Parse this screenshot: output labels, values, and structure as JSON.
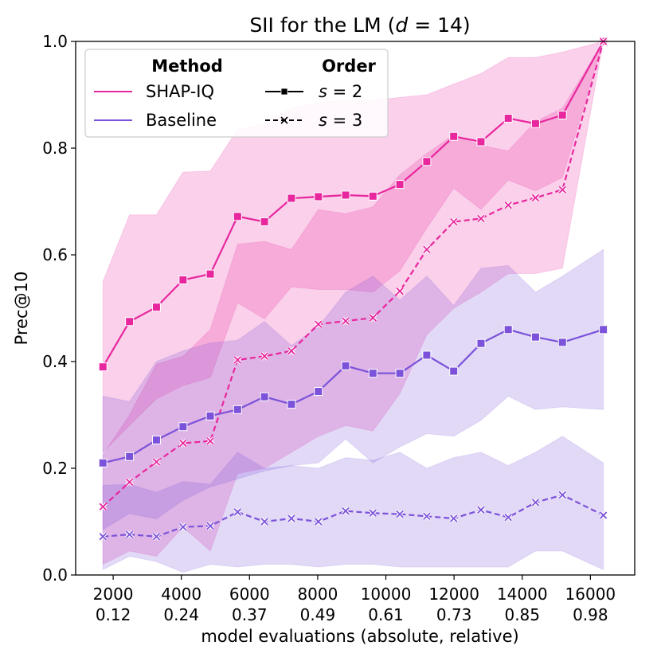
{
  "chart_data": {
    "type": "line",
    "title": "SII for the LM (d = 14)",
    "title_parts": {
      "prefix": "SII for the LM (",
      "var": "d",
      "eq": " = ",
      "num": "14",
      "suffix": ")"
    },
    "xlabel": "model evaluations (absolute, relative)",
    "ylabel": "Prec@10",
    "xlim": [
      900,
      17300
    ],
    "ylim": [
      0.0,
      1.0
    ],
    "x_ticks": [
      {
        "value": 2000,
        "label": "2000",
        "sub": "0.12"
      },
      {
        "value": 4000,
        "label": "4000",
        "sub": "0.24"
      },
      {
        "value": 6000,
        "label": "6000",
        "sub": "0.37"
      },
      {
        "value": 8000,
        "label": "8000",
        "sub": "0.49"
      },
      {
        "value": 10000,
        "label": "10000",
        "sub": "0.61"
      },
      {
        "value": 12000,
        "label": "12000",
        "sub": "0.73"
      },
      {
        "value": 14000,
        "label": "14000",
        "sub": "0.85"
      },
      {
        "value": 16000,
        "label": "16000",
        "sub": "0.98"
      }
    ],
    "y_ticks": [
      {
        "value": 0.0,
        "label": "0.0"
      },
      {
        "value": 0.2,
        "label": "0.2"
      },
      {
        "value": 0.4,
        "label": "0.4"
      },
      {
        "value": 0.6,
        "label": "0.6"
      },
      {
        "value": 0.8,
        "label": "0.8"
      },
      {
        "value": 1.0,
        "label": "1.0"
      }
    ],
    "x": [
      1700,
      2480,
      3270,
      4050,
      4850,
      5650,
      6440,
      7230,
      8020,
      8820,
      9620,
      10410,
      11200,
      11990,
      12790,
      13590,
      14390,
      15180,
      15970
    ],
    "x_end": 16380,
    "series": [
      {
        "name": "SHAP-IQ s=2",
        "method": "SHAP-IQ",
        "order": "s = 2",
        "color": "#e8279e",
        "style": "solid",
        "marker": "square",
        "values": [
          0.39,
          0.475,
          0.502,
          0.553,
          0.564,
          0.672,
          0.662,
          0.706,
          0.709,
          0.712,
          0.71,
          0.732,
          0.775,
          0.822,
          0.812,
          0.856,
          0.846,
          0.862,
          1.0
        ],
        "upper": [
          0.55,
          0.675,
          0.675,
          0.755,
          0.757,
          0.835,
          0.845,
          0.875,
          0.885,
          0.89,
          0.89,
          0.895,
          0.9,
          0.92,
          0.94,
          0.97,
          0.97,
          0.98,
          1.0
        ],
        "lower": [
          0.23,
          0.28,
          0.33,
          0.355,
          0.37,
          0.51,
          0.48,
          0.54,
          0.535,
          0.535,
          0.53,
          0.57,
          0.65,
          0.725,
          0.685,
          0.74,
          0.72,
          0.745,
          1.0
        ]
      },
      {
        "name": "SHAP-IQ s=3",
        "method": "SHAP-IQ",
        "order": "s = 3",
        "color": "#e8279e",
        "style": "dashed",
        "marker": "x",
        "values": [
          0.128,
          0.174,
          0.212,
          0.247,
          0.251,
          0.403,
          0.41,
          0.42,
          0.47,
          0.476,
          0.482,
          0.532,
          0.61,
          0.662,
          0.668,
          0.693,
          0.707,
          0.722,
          1.0
        ],
        "upper": [
          0.225,
          0.3,
          0.395,
          0.41,
          0.46,
          0.62,
          0.625,
          0.61,
          0.685,
          0.677,
          0.69,
          0.75,
          0.79,
          0.825,
          0.805,
          0.795,
          0.85,
          0.875,
          1.0
        ],
        "lower": [
          0.02,
          0.045,
          0.035,
          0.09,
          0.045,
          0.19,
          0.2,
          0.23,
          0.26,
          0.28,
          0.27,
          0.34,
          0.45,
          0.5,
          0.53,
          0.565,
          0.565,
          0.575,
          1.0
        ]
      },
      {
        "name": "Baseline s=2",
        "method": "Baseline",
        "order": "s = 2",
        "color": "#7b52d9",
        "style": "solid",
        "marker": "square",
        "values": [
          0.21,
          0.222,
          0.253,
          0.278,
          0.298,
          0.31,
          0.334,
          0.32,
          0.344,
          0.392,
          0.378,
          0.378,
          0.412,
          0.382,
          0.434,
          0.46,
          0.446,
          0.436,
          0.46
        ],
        "upper": [
          0.335,
          0.325,
          0.4,
          0.42,
          0.435,
          0.44,
          0.475,
          0.43,
          0.465,
          0.53,
          0.56,
          0.515,
          0.56,
          0.505,
          0.575,
          0.58,
          0.53,
          0.56,
          0.61
        ],
        "lower": [
          0.085,
          0.115,
          0.105,
          0.14,
          0.165,
          0.18,
          0.195,
          0.205,
          0.21,
          0.255,
          0.21,
          0.24,
          0.265,
          0.26,
          0.29,
          0.335,
          0.31,
          0.315,
          0.31
        ]
      },
      {
        "name": "Baseline s=3",
        "method": "Baseline",
        "order": "s = 3",
        "color": "#7b52d9",
        "style": "dashed",
        "marker": "x",
        "values": [
          0.072,
          0.076,
          0.072,
          0.09,
          0.092,
          0.118,
          0.1,
          0.106,
          0.1,
          0.12,
          0.116,
          0.114,
          0.11,
          0.106,
          0.122,
          0.108,
          0.136,
          0.15,
          0.112
        ],
        "upper": [
          0.168,
          0.17,
          0.155,
          0.175,
          0.17,
          0.23,
          0.2,
          0.205,
          0.2,
          0.22,
          0.215,
          0.23,
          0.2,
          0.22,
          0.23,
          0.205,
          0.23,
          0.26,
          0.21
        ],
        "lower": [
          0.01,
          0.035,
          0.025,
          0.005,
          0.02,
          0.015,
          0.02,
          0.02,
          0.015,
          0.02,
          0.02,
          0.015,
          0.015,
          0.015,
          0.015,
          0.015,
          0.045,
          0.045,
          0.01
        ]
      }
    ],
    "legend": {
      "position": "top-left",
      "method_header": "Method",
      "order_header": "Order",
      "methods": [
        {
          "label": "SHAP-IQ",
          "color": "#e8279e"
        },
        {
          "label": "Baseline",
          "color": "#7b52d9"
        }
      ],
      "orders": [
        {
          "label_var": "s",
          "label_rest": " = 2",
          "style": "solid",
          "marker": "square"
        },
        {
          "label_var": "s",
          "label_rest": " = 3",
          "style": "dashed",
          "marker": "x"
        }
      ]
    }
  }
}
